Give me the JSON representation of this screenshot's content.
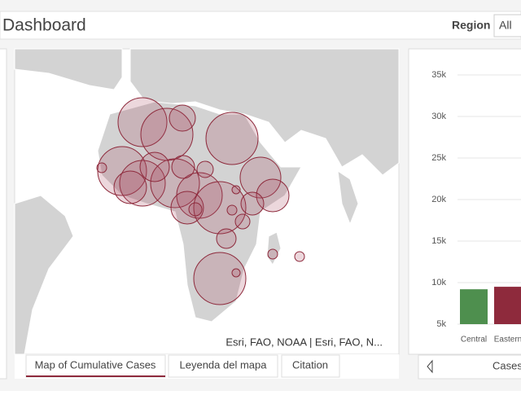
{
  "header": {
    "title": "Dashboard",
    "filter_label": "Region",
    "filter_value": "All"
  },
  "map": {
    "attribution": "Esri, FAO, NOAA | Esri, FAO, N..."
  },
  "tabs": [
    "Map of Cumulative Cases",
    "Leyenda del mapa",
    "Citation"
  ],
  "chart_data": {
    "type": "bar",
    "categories": [
      "Central",
      "Eastern"
    ],
    "values": [
      9200,
      9500
    ],
    "colors": [
      "#4e8f4e",
      "#8e2a3c"
    ],
    "ylim": [
      5000,
      35000
    ],
    "yticks": [
      {
        "value": 5000,
        "label": "5k"
      },
      {
        "value": 10000,
        "label": "10k"
      },
      {
        "value": 15000,
        "label": "15k"
      },
      {
        "value": 20000,
        "label": "20k"
      },
      {
        "value": 25000,
        "label": "25k"
      },
      {
        "value": 30000,
        "label": "30k"
      },
      {
        "value": 35000,
        "label": "35k"
      }
    ],
    "grid": true
  },
  "chart_footer": {
    "label": "Cases"
  }
}
